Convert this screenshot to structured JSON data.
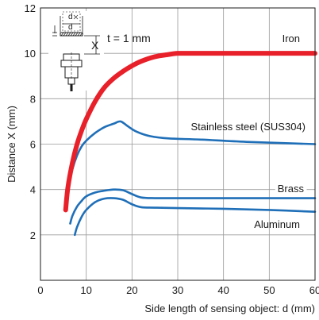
{
  "chart_data": {
    "type": "line",
    "title": "",
    "xlabel": "Side length of sensing object: d (mm)",
    "ylabel": "Distance X (mm)",
    "xlim": [
      0,
      60
    ],
    "ylim": [
      0,
      12
    ],
    "xticks": [
      0,
      10,
      20,
      30,
      40,
      50,
      60
    ],
    "yticks": [
      2,
      4,
      6,
      8,
      10,
      12
    ],
    "grid": true,
    "legend": "inline labels",
    "series": [
      {
        "name": "Iron",
        "color": "#e8202a",
        "x": [
          5.5,
          6,
          7,
          8,
          9,
          10,
          12,
          14,
          16,
          18,
          20,
          22,
          25,
          28,
          30,
          32,
          34,
          36,
          40,
          50,
          60
        ],
        "y": [
          3.1,
          4.1,
          5.2,
          6.0,
          6.6,
          7.1,
          7.9,
          8.5,
          8.9,
          9.2,
          9.45,
          9.65,
          9.85,
          9.95,
          10.0,
          10.0,
          10.0,
          10.0,
          10.0,
          10.0,
          10.0
        ]
      },
      {
        "name": "Stainless steel (SUS304)",
        "color": "#1f6fb8",
        "x": [
          5.5,
          6,
          7,
          8,
          9,
          10,
          12,
          14,
          16,
          17.5,
          19,
          21,
          24,
          28,
          35,
          45,
          60
        ],
        "y": [
          3.1,
          4.0,
          4.9,
          5.5,
          5.9,
          6.15,
          6.5,
          6.75,
          6.9,
          7.0,
          6.8,
          6.55,
          6.35,
          6.25,
          6.2,
          6.1,
          6.0
        ]
      },
      {
        "name": "Brass",
        "color": "#1f6fb8",
        "x": [
          6.5,
          7,
          8,
          9,
          10,
          12,
          14,
          16,
          18,
          20,
          22,
          25,
          30,
          40,
          60
        ],
        "y": [
          2.5,
          2.85,
          3.25,
          3.5,
          3.7,
          3.87,
          3.95,
          4.0,
          3.97,
          3.8,
          3.65,
          3.62,
          3.62,
          3.62,
          3.62
        ]
      },
      {
        "name": "Aluminum",
        "color": "#1f6fb8",
        "x": [
          7.5,
          8,
          9,
          10,
          12,
          14,
          16,
          18,
          20,
          22,
          25,
          30,
          40,
          50,
          60
        ],
        "y": [
          2.0,
          2.35,
          2.8,
          3.1,
          3.45,
          3.6,
          3.62,
          3.55,
          3.35,
          3.22,
          3.2,
          3.18,
          3.15,
          3.1,
          3.02
        ]
      }
    ],
    "annotations": {
      "thickness": "t = 1 mm",
      "inset_d_label": "d",
      "inset_x_label": "X"
    }
  }
}
